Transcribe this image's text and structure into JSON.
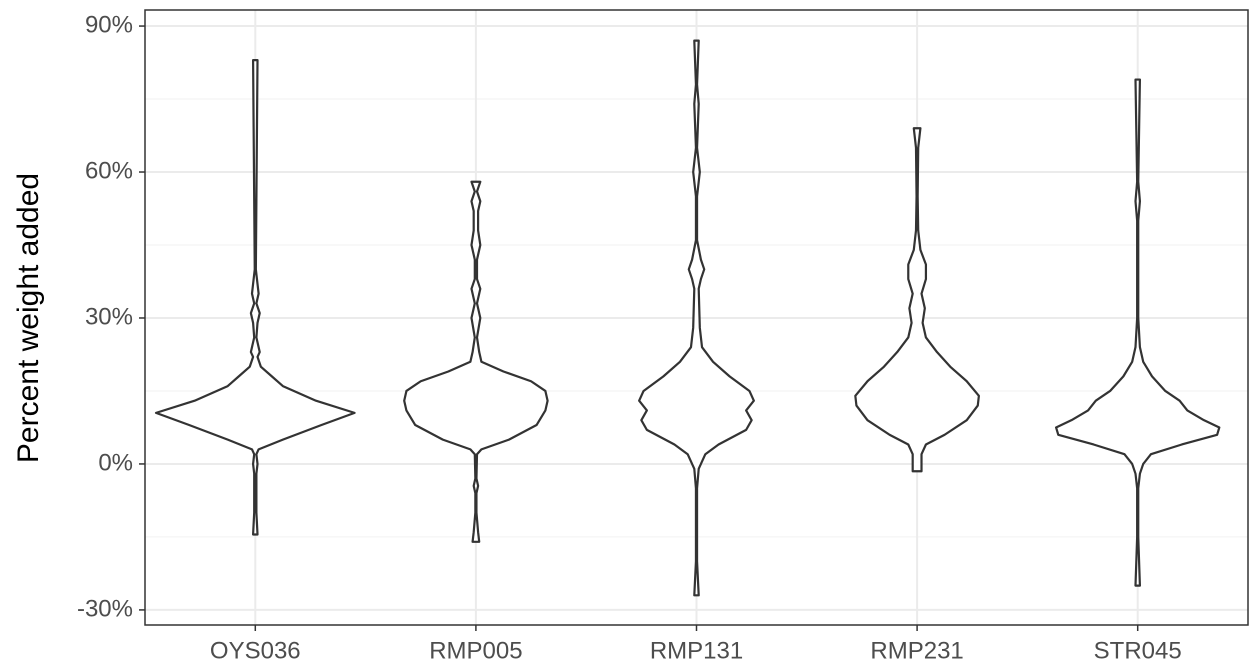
{
  "chart_data": {
    "type": "violin",
    "y_label": "Percent weight added",
    "categories": [
      "OYS036",
      "RMP005",
      "RMP131",
      "RMP231",
      "STR045"
    ],
    "violins": [
      {
        "y": [
          -14.5,
          -10,
          -2,
          0,
          2,
          3,
          5,
          8,
          10.5,
          13,
          16,
          18,
          20,
          22,
          23,
          26,
          29,
          31,
          33,
          35,
          37,
          40,
          83
        ],
        "density": [
          0.02,
          0.01,
          0.01,
          0.02,
          0.01,
          0.03,
          0.25,
          0.6,
          0.9,
          0.55,
          0.25,
          0.15,
          0.05,
          0.02,
          0.04,
          0.01,
          0.02,
          0.04,
          0.01,
          0.03,
          0.02,
          0.005,
          0.02
        ]
      },
      {
        "y": [
          -16,
          -14,
          -10,
          -6,
          -4.5,
          -3,
          2,
          3,
          5,
          8,
          11,
          13,
          15,
          17,
          19,
          21,
          23,
          26,
          30,
          33,
          36,
          38,
          42,
          45,
          48,
          52,
          54,
          56,
          58
        ],
        "density": [
          0.03,
          0.02,
          0.005,
          0.005,
          0.02,
          0.005,
          0.01,
          0.05,
          0.3,
          0.55,
          0.63,
          0.65,
          0.63,
          0.5,
          0.25,
          0.05,
          0.03,
          0.01,
          0.04,
          0.01,
          0.04,
          0.01,
          0.01,
          0.04,
          0.02,
          0.02,
          0.04,
          0.01,
          0.04
        ]
      },
      {
        "y": [
          -27,
          -20,
          -5,
          -1,
          2,
          4,
          7,
          9,
          11,
          13,
          15,
          18,
          21,
          24,
          28,
          36,
          38,
          40,
          42,
          46,
          55,
          60,
          65,
          74,
          78,
          87
        ],
        "density": [
          0.02,
          0.005,
          0.005,
          0.02,
          0.08,
          0.2,
          0.45,
          0.5,
          0.45,
          0.52,
          0.48,
          0.3,
          0.15,
          0.05,
          0.03,
          0.02,
          0.04,
          0.07,
          0.04,
          0.005,
          0.005,
          0.03,
          0.005,
          0.02,
          0.005,
          0.02
        ]
      },
      {
        "y": [
          -1.5,
          2,
          4,
          6,
          9,
          12,
          14,
          17,
          20,
          23,
          26,
          29,
          32,
          35,
          38,
          41,
          44,
          48,
          55,
          65,
          69
        ],
        "density": [
          0.04,
          0.04,
          0.08,
          0.25,
          0.45,
          0.55,
          0.56,
          0.45,
          0.3,
          0.18,
          0.08,
          0.05,
          0.07,
          0.04,
          0.08,
          0.08,
          0.03,
          0.01,
          0.005,
          0.01,
          0.03
        ]
      },
      {
        "y": [
          -25,
          -15,
          -5,
          -2,
          0,
          2,
          4,
          6,
          7.5,
          9,
          11,
          13,
          15,
          18,
          21,
          24,
          30,
          50,
          54,
          58,
          79
        ],
        "density": [
          0.02,
          0.005,
          0.005,
          0.02,
          0.05,
          0.12,
          0.4,
          0.72,
          0.74,
          0.6,
          0.45,
          0.38,
          0.25,
          0.13,
          0.05,
          0.02,
          0.005,
          0.005,
          0.02,
          0.005,
          0.02
        ]
      }
    ],
    "color": "#333333",
    "ylim": [
      -33.1,
      93.3
    ],
    "yticks": [
      {
        "value": -30,
        "label": "-30%"
      },
      {
        "value": 0,
        "label": "0%"
      },
      {
        "value": 30,
        "label": "30%"
      },
      {
        "value": 60,
        "label": "60%"
      },
      {
        "value": 90,
        "label": "90%"
      }
    ],
    "minor_yticks": [
      -15,
      15,
      45,
      75
    ],
    "grid": true
  }
}
